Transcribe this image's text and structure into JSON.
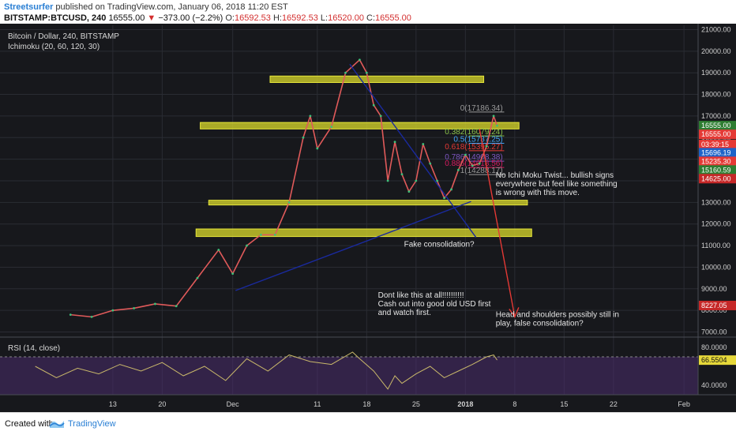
{
  "header": {
    "author": "Streetsurfer",
    "published_text": "published on TradingView.com, January 06, 2018 11:20 EST",
    "symbol": "BITSTAMP:BTCUSD, 240",
    "last": "16555.00",
    "change": "−373.00 (−2.2%)",
    "open_label": "O:",
    "open": "16592.53",
    "high_label": "H:",
    "high": "16592.53",
    "low_label": "L:",
    "low": "16520.00",
    "close_label": "C:",
    "close": "16555.00"
  },
  "footer": {
    "created_with": "Created with",
    "brand": "TradingView"
  },
  "chart_data": {
    "type": "line",
    "title": "Bitcoin / Dollar, 240, BITSTAMP",
    "indicator_label": "Ichimoku (20, 60, 120, 30)",
    "x_tick_labels": [
      "13",
      "20",
      "Dec",
      "11",
      "18",
      "25",
      "2018",
      "8",
      "15",
      "22",
      "Feb"
    ],
    "x_tick_days": [
      -19,
      -12,
      -2,
      10,
      17,
      24,
      31,
      38,
      45,
      52,
      62
    ],
    "y_tick_labels": [
      "7000.00",
      "8000.00",
      "9000.00",
      "10000.00",
      "11000.00",
      "12000.00",
      "13000.00",
      "14000.00",
      "15000.00",
      "16000.00",
      "17000.00",
      "18000.00",
      "19000.00",
      "20000.00",
      "21000.00"
    ],
    "ylim": [
      6800,
      21200
    ],
    "price_series": {
      "name": "BTCUSD",
      "x": [
        -25,
        -22,
        -19,
        -16,
        -13,
        -10,
        -7,
        -4,
        -2,
        0,
        2,
        4,
        6,
        8,
        9,
        10,
        12,
        14,
        16,
        17,
        18,
        19,
        20,
        21,
        22,
        23,
        24,
        25,
        26,
        27,
        28,
        29,
        30,
        31,
        32,
        33,
        34,
        35,
        35.5
      ],
      "y": [
        7800,
        7700,
        8000,
        8100,
        8300,
        8200,
        9500,
        10800,
        9700,
        11000,
        11500,
        11500,
        13000,
        16000,
        17000,
        15500,
        16500,
        19000,
        19600,
        19000,
        17500,
        17000,
        14000,
        15800,
        14300,
        13500,
        14000,
        15700,
        14800,
        14000,
        13200,
        13600,
        14500,
        15200,
        14700,
        14800,
        15600,
        17000,
        16555
      ]
    },
    "horizontal_levels": [
      {
        "label": "0(17186.34)",
        "value": 17186.34,
        "color": "#9a9a9a"
      },
      {
        "label": "0.382(16079.24)",
        "value": 16079.24,
        "color": "#8bc34a"
      },
      {
        "label": "0.5(15737.25)",
        "value": 15737.25,
        "color": "#42a5f5"
      },
      {
        "label": "0.618(15395.27)",
        "value": 15395.27,
        "color": "#e53935"
      },
      {
        "label": "0.786(14908.38)",
        "value": 14908.38,
        "color": "#7e57c2"
      },
      {
        "label": "0.886(14618.56)",
        "value": 14618.56,
        "color": "#d81b60"
      },
      {
        "label": "1(14288.17)",
        "value": 14288.17,
        "color": "#9a9a9a"
      }
    ],
    "price_tags": [
      {
        "label": "16555.00",
        "value": 16555,
        "bg": "#2e7d32",
        "fg": "#ffffff"
      },
      {
        "label": "16555.00",
        "value": 16150,
        "bg": "#e53935",
        "fg": "#ffffff"
      },
      {
        "label": "03:39:15",
        "value": 15680,
        "bg": "#e53935",
        "fg": "#ffffff"
      },
      {
        "label": "15696.19",
        "value": 15300,
        "bg": "#1e63c8",
        "fg": "#ffffff"
      },
      {
        "label": "15235.30",
        "value": 14900,
        "bg": "#e53935",
        "fg": "#ffffff"
      },
      {
        "label": "15160.59",
        "value": 14500,
        "bg": "#2e7d32",
        "fg": "#ffffff"
      },
      {
        "label": "14625.00",
        "value": 14100,
        "bg": "#c62828",
        "fg": "#ffffff"
      },
      {
        "label": "8227.05",
        "value": 8227.05,
        "bg": "#c62828",
        "fg": "#ffffff"
      }
    ],
    "zones": [
      {
        "x0": 3.3,
        "x1": 33.6,
        "y0": 18550,
        "y1": 18850
      },
      {
        "x0": -6.6,
        "x1": 38.6,
        "y0": 16400,
        "y1": 16700
      },
      {
        "x0": -5.4,
        "x1": 39.8,
        "y0": 12880,
        "y1": 13100
      },
      {
        "x0": -7.2,
        "x1": 40.4,
        "y0": 11420,
        "y1": 11770
      }
    ],
    "trendlines": [
      {
        "x": [
          -1.6,
          31.8
        ],
        "y": [
          8920,
          13040
        ],
        "color": "#1a2a9e"
      },
      {
        "x": [
          14.6,
          32.5
        ],
        "y": [
          19400,
          11380
        ],
        "color": "#1a2a9e"
      },
      {
        "x": [
          33.0,
          38.0
        ],
        "y": [
          16400,
          7700
        ],
        "color": "#e53935"
      }
    ],
    "annotations": [
      {
        "text": [
          "No Ichi Moku Twist... bullish signs",
          "everywhere but feel like something",
          "is wrong with this move."
        ],
        "x": 35.3,
        "y": 14150
      },
      {
        "text": [
          "Fake consolidation?"
        ],
        "x": 22.3,
        "y": 10950
      },
      {
        "text": [
          "Dont like this at all!!!!!!!!!!",
          "Cash out into good old USD first",
          "and watch first."
        ],
        "x": 18.6,
        "y": 8600
      },
      {
        "text": [
          "Head and shoulders possibly still in",
          "play, false consolidation?"
        ],
        "x": 35.3,
        "y": 7700
      }
    ],
    "rsi": {
      "label": "RSI (14, close)",
      "ylim": [
        30,
        90
      ],
      "y_tick_labels": [
        "40.0000",
        "80.0000"
      ],
      "y_tick_values": [
        40,
        80
      ],
      "bands": [
        30,
        70
      ],
      "last_label": "66.5504",
      "last_value": 66.5504,
      "x": [
        -30,
        -27,
        -24,
        -21,
        -18,
        -15,
        -12,
        -9,
        -6,
        -3,
        0,
        3,
        6,
        9,
        12,
        15,
        16,
        18,
        20,
        21,
        22,
        24,
        26,
        28,
        30,
        32,
        34,
        35,
        35.5
      ],
      "y": [
        60,
        48,
        58,
        52,
        62,
        55,
        64,
        50,
        60,
        45,
        68,
        55,
        72,
        65,
        62,
        75,
        68,
        55,
        36,
        50,
        42,
        52,
        60,
        48,
        55,
        62,
        70,
        72,
        66.55
      ]
    }
  }
}
